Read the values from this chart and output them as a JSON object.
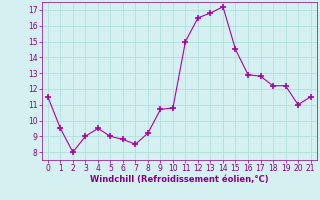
{
  "x": [
    0,
    1,
    2,
    3,
    4,
    5,
    6,
    7,
    8,
    9,
    10,
    11,
    12,
    13,
    14,
    15,
    16,
    17,
    18,
    19,
    20,
    21
  ],
  "y": [
    11.5,
    9.5,
    8.0,
    9.0,
    9.5,
    9.0,
    8.8,
    8.5,
    9.2,
    10.7,
    10.8,
    15.0,
    16.5,
    16.8,
    17.2,
    14.5,
    12.9,
    12.8,
    12.2,
    12.2,
    11.0,
    11.5
  ],
  "line_color": "#aa00aa",
  "marker": "+",
  "marker_size": 4,
  "bg_color": "#d5f0f0",
  "grid_color": "#aadddd",
  "xlabel": "Windchill (Refroidissement éolien,°C)",
  "xlabel_color": "#880088",
  "tick_color": "#880088",
  "xlim": [
    -0.5,
    21.5
  ],
  "ylim": [
    7.5,
    17.5
  ],
  "yticks": [
    8,
    9,
    10,
    11,
    12,
    13,
    14,
    15,
    16,
    17
  ],
  "xticks": [
    0,
    1,
    2,
    3,
    4,
    5,
    6,
    7,
    8,
    9,
    10,
    11,
    12,
    13,
    14,
    15,
    16,
    17,
    18,
    19,
    20,
    21
  ]
}
